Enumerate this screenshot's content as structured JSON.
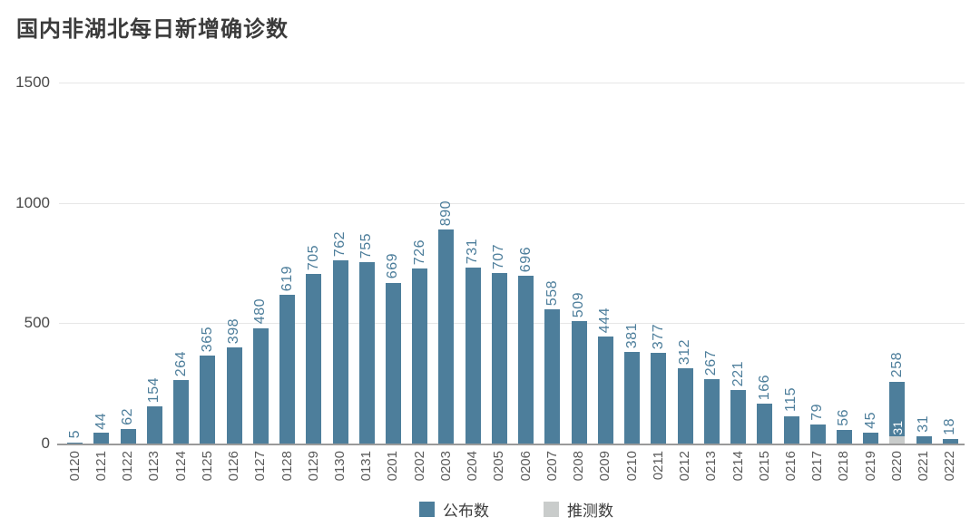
{
  "title": "国内非湖北每日新增确诊数",
  "legend": {
    "announced": "公布数",
    "estimated": "推测数"
  },
  "colors": {
    "announced": "#4d7e9b",
    "estimated": "#c9cccb",
    "bar_value_label": "#4d7e9b",
    "segment_label": "#ffffff",
    "grid": "#e7e7e7",
    "axis_line": "#9a9a9a"
  },
  "chart_data": {
    "type": "bar",
    "title": "国内非湖北每日新增确诊数",
    "categories": [
      "0120",
      "0121",
      "0122",
      "0123",
      "0124",
      "0125",
      "0126",
      "0127",
      "0128",
      "0129",
      "0130",
      "0131",
      "0201",
      "0202",
      "0203",
      "0204",
      "0205",
      "0206",
      "0207",
      "0208",
      "0209",
      "0210",
      "0211",
      "0212",
      "0213",
      "0214",
      "0215",
      "0216",
      "0217",
      "0218",
      "0219",
      "0220",
      "0221",
      "0222"
    ],
    "series": [
      {
        "name": "公布数",
        "values": [
          5,
          44,
          62,
          154,
          264,
          365,
          398,
          480,
          619,
          705,
          762,
          755,
          669,
          726,
          890,
          731,
          707,
          696,
          558,
          509,
          444,
          381,
          377,
          312,
          267,
          221,
          166,
          115,
          79,
          56,
          45,
          258,
          31,
          18
        ]
      },
      {
        "name": "推测数",
        "values": [
          0,
          0,
          0,
          0,
          0,
          0,
          0,
          0,
          0,
          0,
          0,
          0,
          0,
          0,
          0,
          0,
          0,
          0,
          0,
          0,
          0,
          0,
          0,
          0,
          0,
          0,
          0,
          0,
          0,
          0,
          0,
          31,
          0,
          0
        ]
      }
    ],
    "bar_top_labels": [
      "5",
      "44",
      "62",
      "154",
      "264",
      "365",
      "398",
      "480",
      "619",
      "705",
      "762",
      "755",
      "669",
      "726",
      "890",
      "731",
      "707",
      "696",
      "558",
      "509",
      "444",
      "381",
      "377",
      "312",
      "267",
      "221",
      "166",
      "115",
      "79",
      "56",
      "45",
      "258",
      "31",
      "18"
    ],
    "segment_labels": [
      {
        "category": "0220",
        "series": "推测数",
        "label": "31"
      }
    ],
    "render_note": "gray estimated segment drawn at bottom of 0220 bar, white label just above it; blue announced bar full height; value labels and date labels rotated 90° CCW",
    "ylim": [
      0,
      1500
    ],
    "yticks": [
      1500,
      1000,
      500,
      0
    ],
    "grid": "horizontal",
    "legend_position": "bottom"
  }
}
